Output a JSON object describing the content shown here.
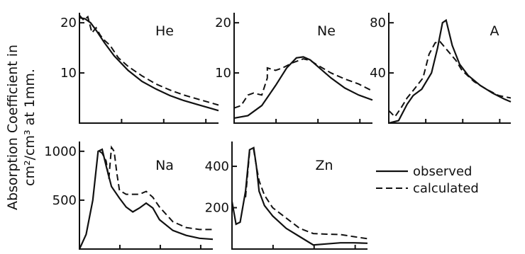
{
  "ylabel_line1": "Absorption Coefficient in",
  "ylabel_line2": "cm²/cm³ at 1mm.",
  "legend": {
    "observed": "observed",
    "calculated": "calculated"
  },
  "chart_data": [
    {
      "type": "line",
      "element": "He",
      "ylim": [
        0,
        22
      ],
      "yticks": [
        10,
        20
      ],
      "series": [
        {
          "name": "observed",
          "x": [
            0,
            0.04,
            0.08,
            0.12,
            0.18,
            0.25,
            0.35,
            0.45,
            0.55,
            0.65,
            0.75,
            0.85,
            0.95,
            1.0
          ],
          "y": [
            21,
            20.8,
            20,
            18.5,
            16,
            13.4,
            10.5,
            8.3,
            6.8,
            5.5,
            4.5,
            3.7,
            2.9,
            2.5
          ]
        },
        {
          "name": "calculated",
          "x": [
            0,
            0.03,
            0.06,
            0.09,
            0.12,
            0.15,
            0.18,
            0.22,
            0.28,
            0.35,
            0.45,
            0.55,
            0.65,
            0.75,
            0.85,
            0.95,
            1.0
          ],
          "y": [
            21.5,
            20.5,
            21.2,
            18,
            19,
            17.5,
            16.5,
            15.5,
            13,
            11.3,
            9.4,
            7.8,
            6.6,
            5.6,
            4.8,
            4,
            3.6
          ]
        }
      ]
    },
    {
      "type": "line",
      "element": "Ne",
      "ylim": [
        0,
        22
      ],
      "yticks": [
        10,
        20
      ],
      "series": [
        {
          "name": "observed",
          "x": [
            0,
            0.1,
            0.2,
            0.3,
            0.38,
            0.45,
            0.5,
            0.55,
            0.6,
            0.7,
            0.8,
            0.9,
            1.0
          ],
          "y": [
            1,
            1.5,
            3.5,
            7.5,
            11,
            13,
            13.2,
            12.6,
            11.4,
            9,
            7,
            5.6,
            4.6
          ]
        },
        {
          "name": "calculated",
          "x": [
            0,
            0.05,
            0.1,
            0.14,
            0.14,
            0.2,
            0.24,
            0.24,
            0.3,
            0.35,
            0.42,
            0.5,
            0.55,
            0.6,
            0.7,
            0.8,
            0.9,
            1.0
          ],
          "y": [
            3,
            3.5,
            5.6,
            6,
            6,
            5.6,
            9,
            11,
            10.5,
            11,
            12,
            12.8,
            12.5,
            11.6,
            10,
            8.8,
            7.8,
            6.4
          ]
        }
      ]
    },
    {
      "type": "line",
      "element": "A",
      "ylim": [
        0,
        88
      ],
      "yticks": [
        40,
        80
      ],
      "series": [
        {
          "name": "observed",
          "x": [
            0,
            0.08,
            0.15,
            0.2,
            0.27,
            0.35,
            0.4,
            0.44,
            0.47,
            0.52,
            0.58,
            0.65,
            0.75,
            0.85,
            0.95,
            1.0
          ],
          "y": [
            0,
            2,
            15,
            22,
            27,
            40,
            60,
            80,
            82,
            62,
            47,
            38,
            30,
            24,
            19,
            17
          ]
        },
        {
          "name": "calculated",
          "x": [
            0,
            0.05,
            0.1,
            0.15,
            0.2,
            0.28,
            0.33,
            0.38,
            0.42,
            0.48,
            0.55,
            0.6,
            0.7,
            0.8,
            0.9,
            1.0
          ],
          "y": [
            10,
            5,
            12,
            20,
            26,
            36,
            55,
            64,
            65,
            58,
            50,
            42,
            33,
            27,
            22,
            20
          ]
        }
      ]
    },
    {
      "type": "line",
      "element": "Na",
      "ylim": [
        0,
        1100
      ],
      "yticks": [
        500,
        1000
      ],
      "series": [
        {
          "name": "observed",
          "x": [
            0,
            0.05,
            0.1,
            0.14,
            0.17,
            0.2,
            0.24,
            0.3,
            0.35,
            0.4,
            0.45,
            0.5,
            0.55,
            0.6,
            0.7,
            0.8,
            0.9,
            1.0
          ],
          "y": [
            0,
            150,
            500,
            1000,
            1020,
            850,
            640,
            520,
            430,
            380,
            420,
            470,
            420,
            300,
            190,
            140,
            110,
            100
          ]
        },
        {
          "name": "calculated",
          "x": [
            0.15,
            0.17,
            0.2,
            0.22,
            0.24,
            0.26,
            0.28,
            0.3,
            0.35,
            0.4,
            0.45,
            0.5,
            0.55,
            0.6,
            0.7,
            0.8,
            0.9,
            1.0
          ],
          "y": [
            1000,
            980,
            900,
            720,
            1040,
            1000,
            780,
            600,
            560,
            560,
            560,
            590,
            530,
            430,
            280,
            220,
            200,
            200
          ]
        }
      ]
    },
    {
      "type": "line",
      "element": "Zn",
      "ylim": [
        0,
        520
      ],
      "yticks": [
        200,
        400
      ],
      "series": [
        {
          "name": "observed",
          "x": [
            0,
            0.03,
            0.06,
            0.1,
            0.13,
            0.16,
            0.18,
            0.2,
            0.24,
            0.3,
            0.4,
            0.5,
            0.6,
            0.7,
            0.8,
            0.9,
            1.0
          ],
          "y": [
            230,
            120,
            130,
            280,
            480,
            490,
            400,
            280,
            210,
            160,
            100,
            60,
            20,
            25,
            30,
            30,
            28
          ]
        },
        {
          "name": "calculated",
          "x": [
            0.1,
            0.13,
            0.16,
            0.18,
            0.2,
            0.24,
            0.3,
            0.4,
            0.5,
            0.6,
            0.7,
            0.8,
            0.9,
            1.0
          ],
          "y": [
            250,
            470,
            480,
            400,
            330,
            260,
            200,
            150,
            100,
            75,
            72,
            70,
            60,
            50
          ]
        }
      ]
    }
  ]
}
